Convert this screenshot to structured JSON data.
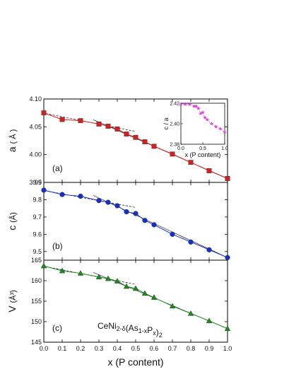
{
  "chart_data": [
    {
      "panel": "(a)",
      "type": "line",
      "ylabel_main": "a",
      "ylabel_unit": "( Å )",
      "xlim": [
        0,
        1
      ],
      "ylim": [
        3.95,
        4.1
      ],
      "yticks": [
        "3.95",
        "4.00",
        "4.05",
        "4.10"
      ],
      "x": [
        0.0,
        0.1,
        0.2,
        0.3,
        0.35,
        0.4,
        0.45,
        0.5,
        0.55,
        0.6,
        0.7,
        0.8,
        0.9,
        1.0
      ],
      "values": [
        4.075,
        4.063,
        4.061,
        4.055,
        4.051,
        4.046,
        4.037,
        4.031,
        4.023,
        4.015,
        4.001,
        3.986,
        3.971,
        3.957
      ],
      "color": "#d42020",
      "marker": "square"
    },
    {
      "panel": "(b)",
      "type": "line",
      "ylabel_main": "c",
      "ylabel_unit": "(Å)",
      "xlim": [
        0,
        1
      ],
      "ylim": [
        9.45,
        9.9
      ],
      "yticks": [
        "9.5",
        "9.6",
        "9.7",
        "9.8",
        "9.9"
      ],
      "x": [
        0.0,
        0.1,
        0.2,
        0.3,
        0.35,
        0.4,
        0.45,
        0.5,
        0.55,
        0.6,
        0.7,
        0.8,
        0.9,
        1.0
      ],
      "values": [
        9.855,
        9.83,
        9.82,
        9.795,
        9.785,
        9.765,
        9.73,
        9.72,
        9.68,
        9.655,
        9.6,
        9.555,
        9.51,
        9.465
      ],
      "color": "#1530c8",
      "marker": "circle"
    },
    {
      "panel": "(c)",
      "type": "line",
      "ylabel_main": "V",
      "ylabel_unit": "(Å³)",
      "xlim": [
        0,
        1
      ],
      "ylim": [
        145,
        165
      ],
      "yticks": [
        "145",
        "150",
        "155",
        "160",
        "165"
      ],
      "x": [
        0.0,
        0.1,
        0.2,
        0.3,
        0.35,
        0.4,
        0.45,
        0.5,
        0.55,
        0.6,
        0.7,
        0.8,
        0.9,
        1.0
      ],
      "values": [
        163.6,
        162.4,
        161.8,
        160.9,
        160.5,
        159.9,
        158.6,
        158.1,
        156.9,
        155.9,
        153.8,
        152.0,
        150.2,
        148.3
      ],
      "color": "#1c8a1c",
      "marker": "triangle"
    },
    {
      "panel": "inset",
      "type": "scatter",
      "ylabel": "c / a",
      "xlabel": "x (P content)",
      "xlim": [
        0,
        1
      ],
      "ylim": [
        2.38,
        2.42
      ],
      "xticks": [
        "0.0",
        "0.5",
        "1.0"
      ],
      "yticks": [
        "2.38",
        "2.40",
        "2.42"
      ],
      "x": [
        0.0,
        0.1,
        0.2,
        0.3,
        0.35,
        0.4,
        0.45,
        0.5,
        0.55,
        0.6,
        0.7,
        0.8,
        0.9,
        1.0
      ],
      "values": [
        2.419,
        2.419,
        2.419,
        2.417,
        2.417,
        2.415,
        2.41,
        2.411,
        2.406,
        2.404,
        2.4,
        2.397,
        2.395,
        2.392
      ],
      "color": "#e040e0",
      "marker": "star"
    }
  ],
  "xaxis": {
    "label": "x (P content)",
    "ticks": [
      "0.0",
      "0.1",
      "0.2",
      "0.3",
      "0.4",
      "0.5",
      "0.6",
      "0.7",
      "0.8",
      "0.9",
      "1.0"
    ]
  },
  "formula": "CeNi2-δ(As1-xPx)2",
  "panel_labels": [
    "(a)",
    "(b)",
    "(c)"
  ]
}
